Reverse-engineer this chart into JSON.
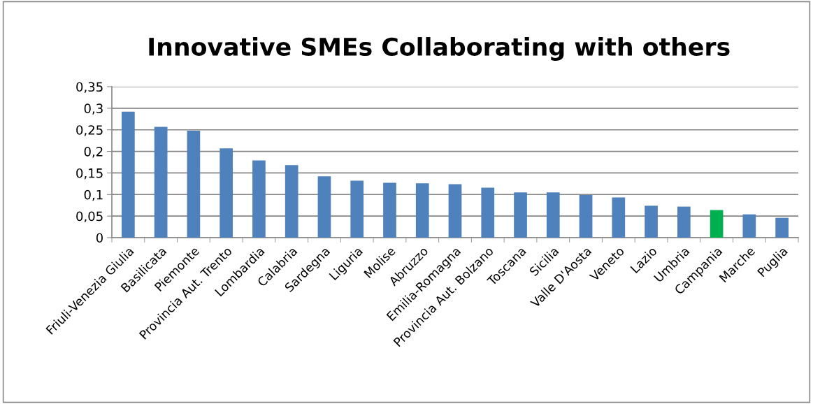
{
  "chart_data": {
    "type": "bar",
    "title": "Innovative SMEs Collaborating with others",
    "categories": [
      "Friuli-Venezia Giulia",
      "Basilicata",
      "Piemonte",
      "Provincia Aut. Trento",
      "Lombardia",
      "Calabria",
      "Sardegna",
      "Liguria",
      "Molise",
      "Abruzzo",
      "Emilia-Romagna",
      "Provincia Aut. Bolzano",
      "Toscana",
      "Sicilia",
      "Valle D'Aosta",
      "Veneto",
      "Lazio",
      "Umbria",
      "Campania",
      "Marche",
      "Puglia"
    ],
    "values": [
      0.292,
      0.257,
      0.248,
      0.207,
      0.179,
      0.168,
      0.142,
      0.132,
      0.127,
      0.126,
      0.124,
      0.116,
      0.105,
      0.105,
      0.099,
      0.093,
      0.074,
      0.072,
      0.064,
      0.054,
      0.046
    ],
    "colors": [
      "#4f81bd",
      "#4f81bd",
      "#4f81bd",
      "#4f81bd",
      "#4f81bd",
      "#4f81bd",
      "#4f81bd",
      "#4f81bd",
      "#4f81bd",
      "#4f81bd",
      "#4f81bd",
      "#4f81bd",
      "#4f81bd",
      "#4f81bd",
      "#4f81bd",
      "#4f81bd",
      "#4f81bd",
      "#4f81bd",
      "#00b050",
      "#4f81bd",
      "#4f81bd"
    ],
    "ylim": [
      0,
      0.35
    ],
    "yticks": [
      0,
      {
        "value": 0.05,
        "label": "0,05"
      },
      {
        "value": 0.1,
        "label": "0,1"
      },
      {
        "value": 0.15,
        "label": "0,15"
      },
      {
        "value": 0.2,
        "label": "0,2"
      },
      {
        "value": 0.25,
        "label": "0,25"
      },
      {
        "value": 0.3,
        "label": "0,3"
      },
      {
        "value": 0.35,
        "label": "0,35"
      }
    ],
    "grid": "y",
    "legend": false
  }
}
